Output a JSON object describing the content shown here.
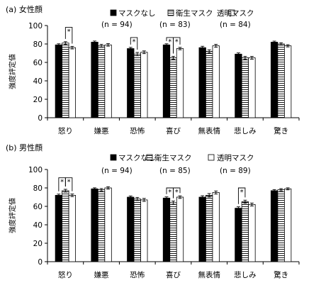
{
  "chart_data": [
    {
      "type": "bar",
      "title": "(a) 女性顔",
      "ylabel": "強度評定値",
      "ylim": [
        0,
        100
      ],
      "yticks": [
        0,
        20,
        40,
        60,
        80,
        100
      ],
      "grid": false,
      "legend_position": "top",
      "categories": [
        "怒り",
        "嫌悪",
        "恐怖",
        "喜び",
        "無表情",
        "悲しみ",
        "驚き"
      ],
      "series": [
        {
          "name": "マスクなし",
          "n_label": "(n = 94)",
          "fill": "solid-black",
          "values": [
            79,
            82,
            75,
            79,
            76,
            69,
            82
          ],
          "errors": [
            1.2,
            1.2,
            1.3,
            1.2,
            1.5,
            1.3,
            1.1
          ]
        },
        {
          "name": "衛生マスク",
          "n_label": "(n = 83)",
          "fill": "horizontal-stripes",
          "values": [
            81,
            78,
            69,
            65,
            72,
            65,
            80
          ],
          "errors": [
            1.5,
            1.6,
            1.8,
            1.6,
            1.7,
            1.6,
            1.3
          ]
        },
        {
          "name": "透明マスク",
          "n_label": "(n = 84)",
          "fill": "white",
          "values": [
            76,
            79,
            71,
            75,
            78,
            65,
            78
          ],
          "errors": [
            1.4,
            1.4,
            1.5,
            1.3,
            1.6,
            1.5,
            1.2
          ]
        }
      ],
      "significance": [
        {
          "category": "怒り",
          "from": 1,
          "to": 2,
          "label": "*",
          "y": 98
        },
        {
          "category": "恐怖",
          "from": 0,
          "to": 1,
          "label": "*",
          "y": 87
        },
        {
          "category": "喜び",
          "from": 0,
          "to": 1,
          "label": "*",
          "y": 87
        },
        {
          "category": "喜び",
          "from": 1,
          "to": 2,
          "label": "*",
          "y": 87
        }
      ]
    },
    {
      "type": "bar",
      "title": "(b) 男性顔",
      "ylabel": "強度評定値",
      "ylim": [
        0,
        100
      ],
      "yticks": [
        0,
        20,
        40,
        60,
        80,
        100
      ],
      "grid": false,
      "legend_position": "top",
      "categories": [
        "怒り",
        "嫌悪",
        "恐怖",
        "喜び",
        "無表情",
        "悲しみ",
        "驚き"
      ],
      "series": [
        {
          "name": "マスクなし",
          "n_label": "(n = 94)",
          "fill": "solid-black",
          "values": [
            72,
            79,
            70,
            69,
            70,
            58,
            77
          ],
          "errors": [
            1.3,
            1.1,
            1.3,
            1.3,
            1.5,
            1.5,
            1.2
          ]
        },
        {
          "name": "衛生マスク",
          "n_label": "(n = 85)",
          "fill": "horizontal-stripes",
          "values": [
            77,
            78,
            68,
            64,
            72,
            65,
            78
          ],
          "errors": [
            1.5,
            1.3,
            1.7,
            1.8,
            1.9,
            1.7,
            1.2
          ]
        },
        {
          "name": "透明マスク",
          "n_label": "(n = 89)",
          "fill": "white",
          "values": [
            72,
            80,
            67,
            70,
            75,
            62,
            79
          ],
          "errors": [
            1.4,
            1.3,
            1.6,
            1.4,
            1.7,
            1.6,
            1.1
          ]
        }
      ],
      "significance": [
        {
          "category": "怒り",
          "from": 0,
          "to": 1,
          "label": "*",
          "y": 91
        },
        {
          "category": "怒り",
          "from": 1,
          "to": 2,
          "label": "*",
          "y": 91
        },
        {
          "category": "喜び",
          "from": 0,
          "to": 1,
          "label": "*",
          "y": 80
        },
        {
          "category": "喜び",
          "from": 1,
          "to": 2,
          "label": "*",
          "y": 80
        },
        {
          "category": "悲しみ",
          "from": 0,
          "to": 1,
          "label": "*",
          "y": 80
        }
      ]
    }
  ],
  "colors": {
    "bar_black": "#000000",
    "bar_white": "#ffffff",
    "stripe": "#000000",
    "axis": "#000000"
  }
}
